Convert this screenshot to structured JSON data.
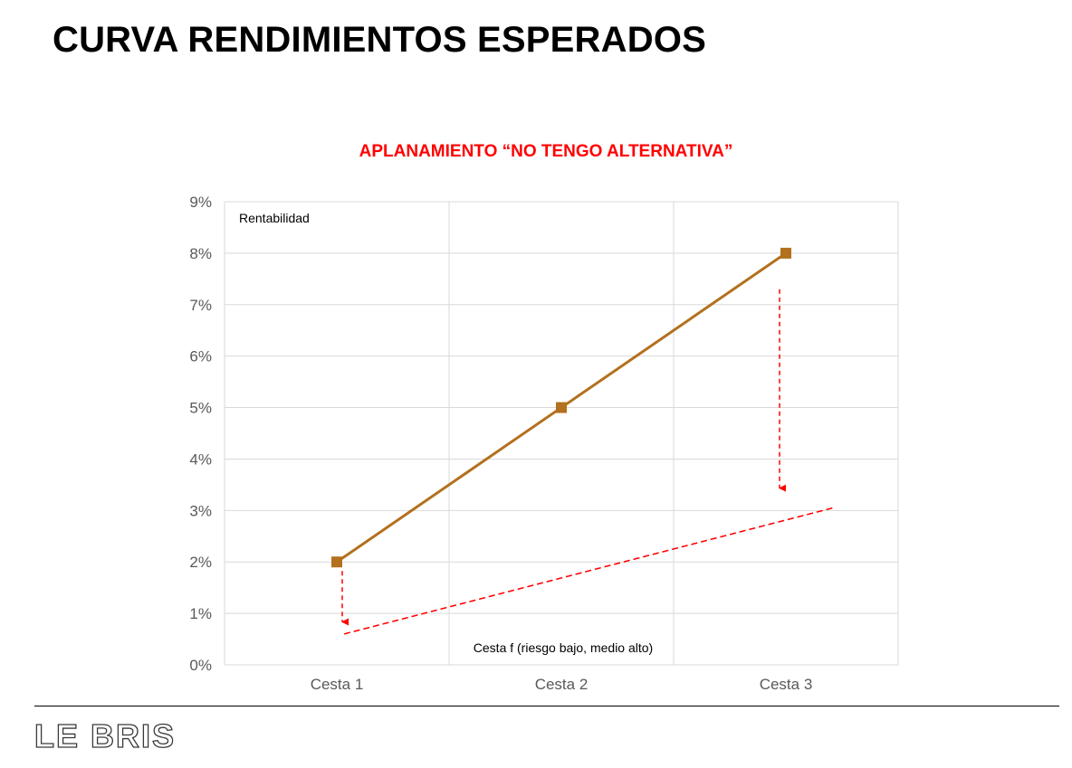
{
  "page": {
    "title": "CURVA RENDIMIENTOS ESPERADOS",
    "brand": "LE BRIS"
  },
  "colors": {
    "series_main": "#b3701e",
    "series_flat": "#ff0000",
    "title_accent": "#ff0000",
    "grid": "#d9d9d9",
    "tick_text": "#595959"
  },
  "chart_data": {
    "type": "line",
    "title": "APLANAMIENTO “NO TENGO ALTERNATIVA”",
    "ylabel": "Rentabilidad",
    "xlabel": "",
    "categories": [
      "Cesta 1",
      "Cesta 2",
      "Cesta 3"
    ],
    "ylim": [
      0,
      9
    ],
    "yticks": [
      "0%",
      "1%",
      "2%",
      "3%",
      "4%",
      "5%",
      "6%",
      "7%",
      "8%",
      "9%"
    ],
    "grid": true,
    "series": [
      {
        "values": [
          2,
          5,
          8
        ],
        "style": "solid",
        "marker": "square"
      },
      {
        "values": [
          0.6,
          1.85,
          3.05
        ],
        "style": "dashed",
        "marker": "none"
      }
    ],
    "annotations": [
      {
        "type": "label",
        "text": "Cesta f (riesgo bajo, medio alto)"
      },
      {
        "type": "arrow",
        "category": "Cesta 1",
        "from": 2.0,
        "to": 0.8,
        "style": "dashed"
      },
      {
        "type": "arrow",
        "category": "Cesta 3",
        "from": 7.3,
        "to": 3.4,
        "style": "dashed"
      }
    ]
  }
}
